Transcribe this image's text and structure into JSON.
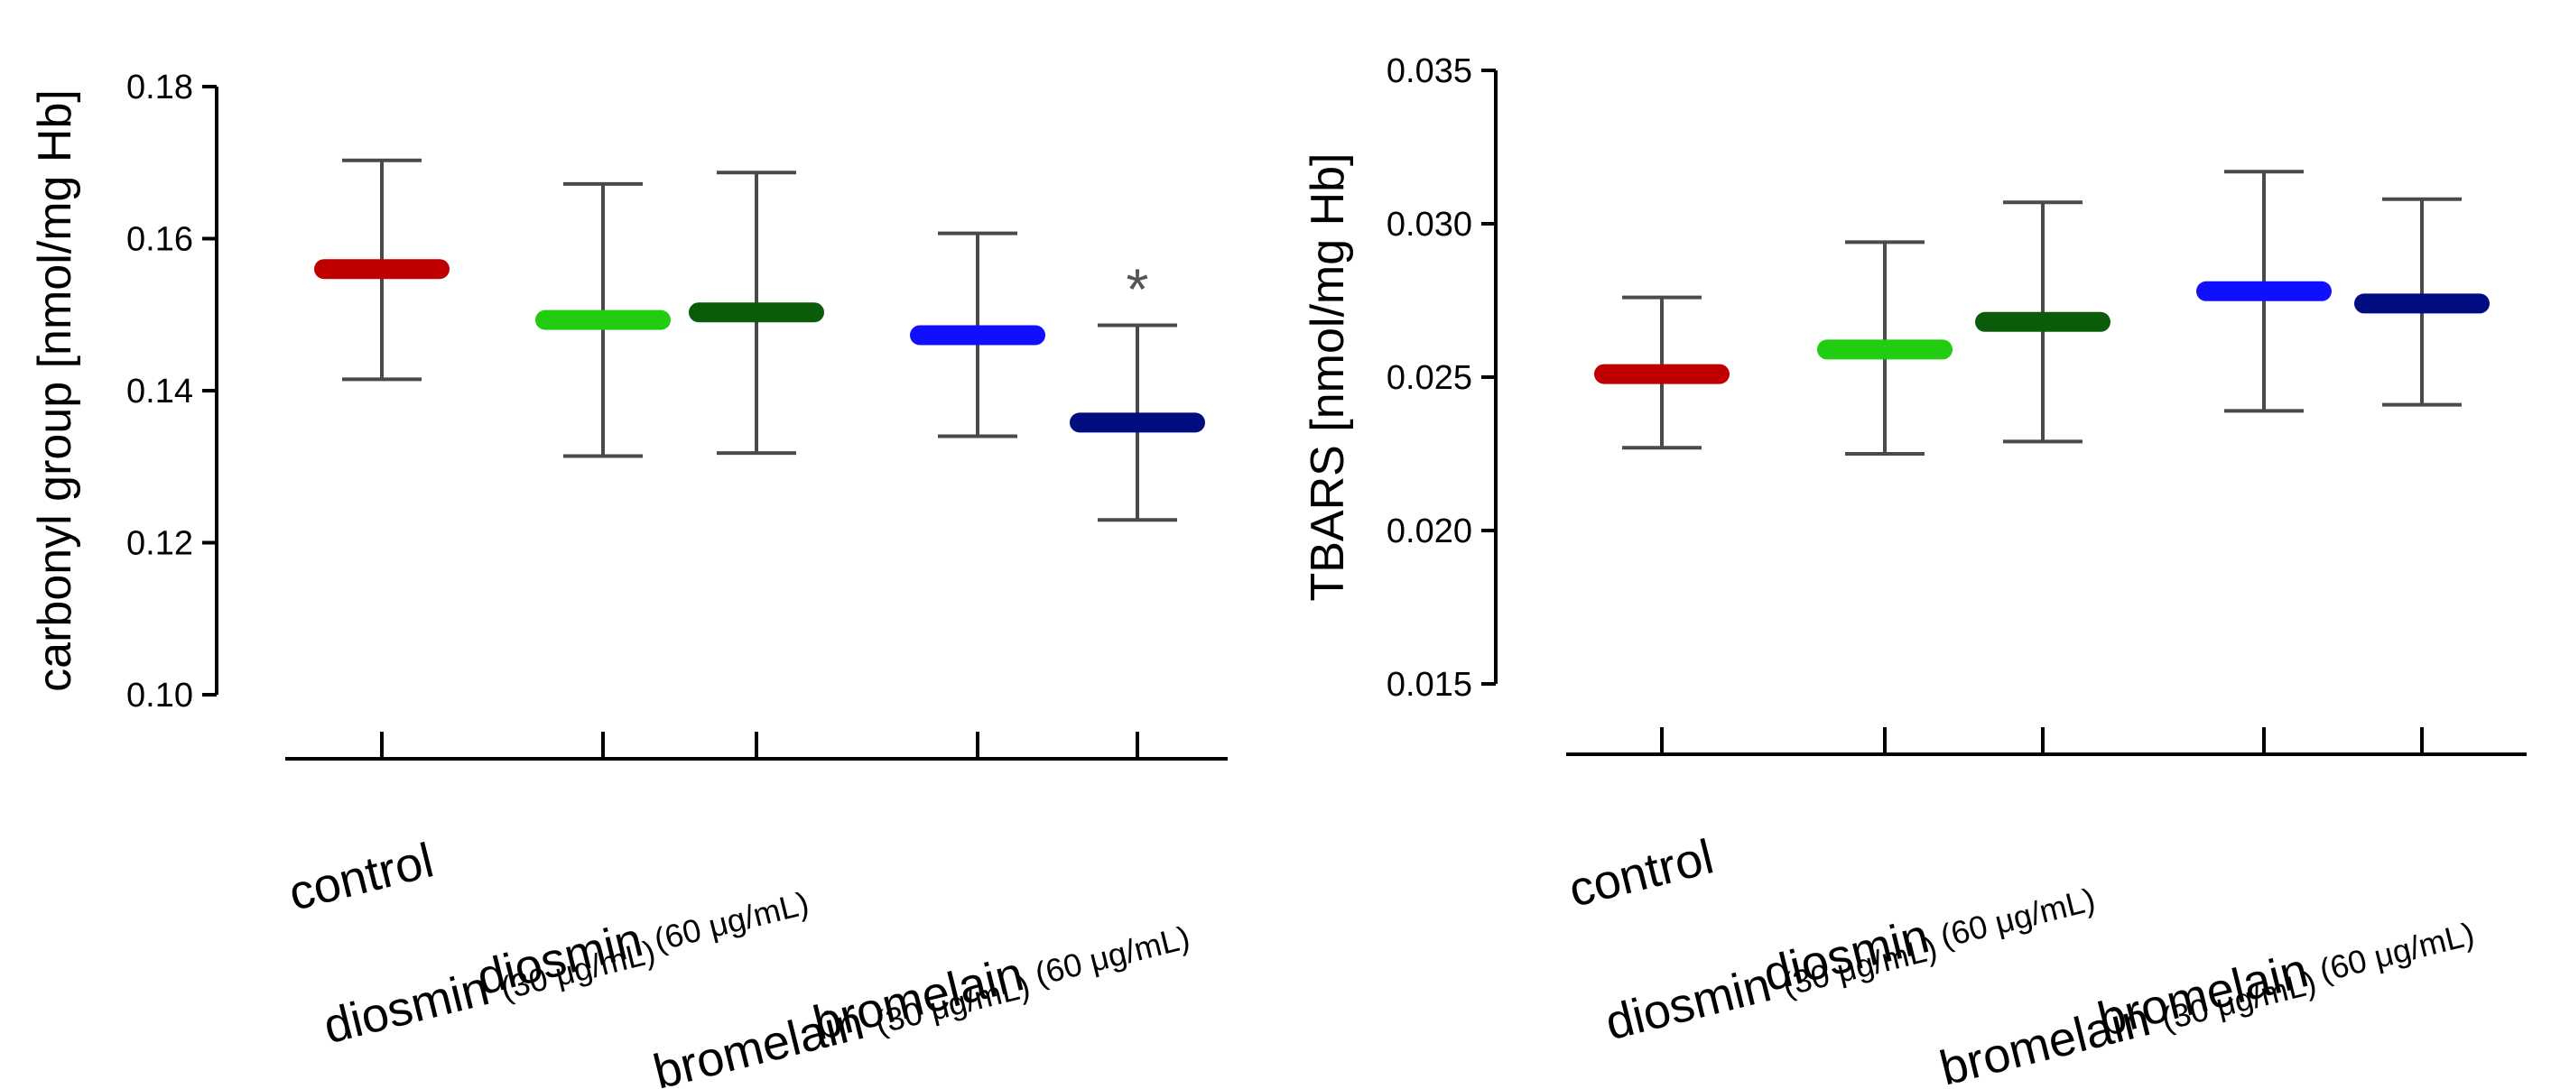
{
  "chart_data": [
    {
      "type": "scatter",
      "title": "",
      "xlabel": "",
      "ylabel": "carbonyl group [nmol/mg Hb]",
      "ylim": [
        0.1,
        0.18
      ],
      "yticks": [
        "0.10",
        "0.12",
        "0.14",
        "0.16",
        "0.18"
      ],
      "groups": [
        {
          "name": "control",
          "dose": "",
          "mean": 0.156,
          "lower": 0.1415,
          "upper": 0.1703,
          "color": "#c00000",
          "annotation": ""
        },
        {
          "name": "diosmin",
          "dose": "(30 μg/mL)",
          "mean": 0.1493,
          "lower": 0.1314,
          "upper": 0.1672,
          "color": "#22cc11",
          "annotation": ""
        },
        {
          "name": "diosmin",
          "dose": "(60 μg/mL)",
          "mean": 0.1503,
          "lower": 0.1318,
          "upper": 0.1687,
          "color": "#0a5c0a",
          "annotation": ""
        },
        {
          "name": "bromelain",
          "dose": "(30 μg/mL)",
          "mean": 0.1473,
          "lower": 0.134,
          "upper": 0.1607,
          "color": "#1010ff",
          "annotation": ""
        },
        {
          "name": "bromelain",
          "dose": "(60 μg/mL)",
          "mean": 0.1358,
          "lower": 0.123,
          "upper": 0.1486,
          "color": "#000c80",
          "annotation": "*"
        }
      ]
    },
    {
      "type": "scatter",
      "title": "",
      "xlabel": "",
      "ylabel": "TBARS [nmol/mg Hb]",
      "ylim": [
        0.015,
        0.035
      ],
      "yticks": [
        "0.015",
        "0.020",
        "0.025",
        "0.030",
        "0.035"
      ],
      "groups": [
        {
          "name": "control",
          "dose": "",
          "mean": 0.0251,
          "lower": 0.0227,
          "upper": 0.0276,
          "color": "#c00000",
          "annotation": ""
        },
        {
          "name": "diosmin",
          "dose": "(30 μg/mL)",
          "mean": 0.0259,
          "lower": 0.0225,
          "upper": 0.0294,
          "color": "#22cc11",
          "annotation": ""
        },
        {
          "name": "diosmin",
          "dose": "(60 μg/mL)",
          "mean": 0.0268,
          "lower": 0.0229,
          "upper": 0.0307,
          "color": "#0a5c0a",
          "annotation": ""
        },
        {
          "name": "bromelain",
          "dose": "(30 μg/mL)",
          "mean": 0.0278,
          "lower": 0.0239,
          "upper": 0.0317,
          "color": "#1010ff",
          "annotation": ""
        },
        {
          "name": "bromelain",
          "dose": "(60 μg/mL)",
          "mean": 0.0274,
          "lower": 0.0241,
          "upper": 0.0308,
          "color": "#000c80",
          "annotation": ""
        }
      ]
    }
  ]
}
